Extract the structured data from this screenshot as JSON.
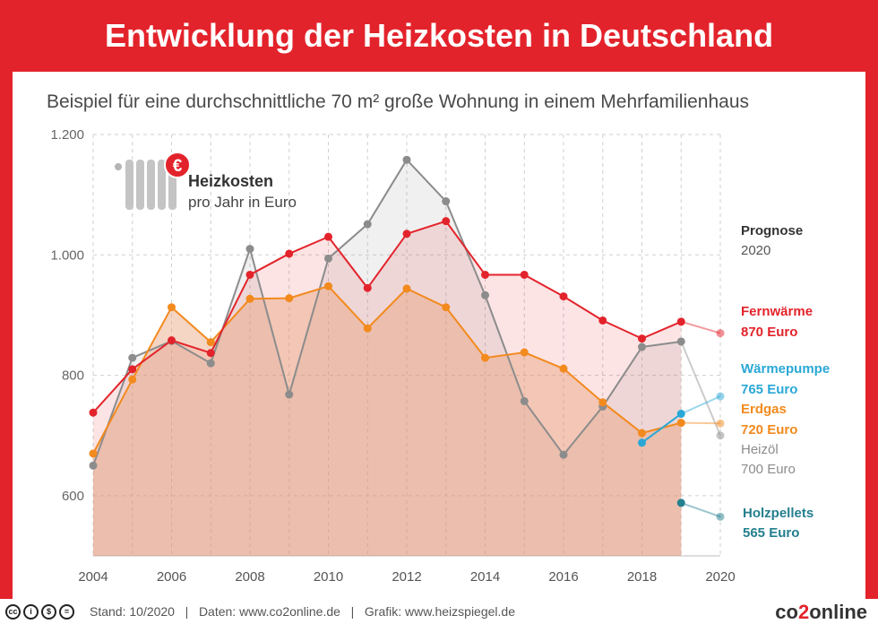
{
  "title": "Entwicklung der Heizkosten in Deutschland",
  "subtitle": "Beispiel für eine durchschnittliche 70 m² große Wohnung in einem Mehrfamilienhaus",
  "legend_box": {
    "title": "Heizkosten",
    "subtitle": "pro Jahr in Euro",
    "icon": "radiator-euro-icon"
  },
  "prognose": {
    "label": "Prognose",
    "year": "2020"
  },
  "colors": {
    "brand_red": "#e3232b",
    "fernwaerme": "#e3232b",
    "erdgas": "#f28a1e",
    "heizoel": "#8c8c8c",
    "waermepumpe": "#2aa8d6",
    "holzpellets": "#247f8e"
  },
  "footer": {
    "license_icons": [
      "cc-icon",
      "by-icon",
      "nc-icon",
      "nd-icon"
    ],
    "text": "Stand: 10/2020   |   Daten: www.co2online.de   |   Grafik: www.heizspiegel.de",
    "logo_a": "co",
    "logo_b": "2",
    "logo_c": "online"
  },
  "chart_data": {
    "type": "line",
    "title": "Entwicklung der Heizkosten in Deutschland",
    "subtitle": "Beispiel für eine durchschnittliche 70 m² große Wohnung in einem Mehrfamilienhaus",
    "xlabel": "",
    "ylabel": "",
    "x": [
      2004,
      2005,
      2006,
      2007,
      2008,
      2009,
      2010,
      2011,
      2012,
      2013,
      2014,
      2015,
      2016,
      2017,
      2018,
      2019
    ],
    "x_ticks": [
      "2004",
      "2006",
      "2008",
      "2010",
      "2012",
      "2014",
      "2016",
      "2018",
      "2020"
    ],
    "x_range": [
      2004,
      2020
    ],
    "y_ticks": [
      "600",
      "800",
      "1.000",
      "1.200"
    ],
    "ylim": [
      500,
      1200
    ],
    "grid": true,
    "series": [
      {
        "name": "Fernwärme",
        "values": [
          738,
          810,
          858,
          837,
          967,
          1002,
          1030,
          945,
          1035,
          1056,
          967,
          967,
          931,
          891,
          861,
          889
        ],
        "forecast_2020": 870,
        "label": "870 Euro"
      },
      {
        "name": "Erdgas",
        "values": [
          670,
          793,
          913,
          855,
          927,
          928,
          948,
          878,
          944,
          913,
          829,
          838,
          811,
          755,
          704,
          721
        ],
        "forecast_2020": 720,
        "label": "720 Euro"
      },
      {
        "name": "Heizöl",
        "values": [
          650,
          829,
          857,
          820,
          1010,
          768,
          994,
          1051,
          1158,
          1089,
          933,
          757,
          668,
          748,
          847,
          856
        ],
        "forecast_2020": 700,
        "label": "700 Euro"
      },
      {
        "name": "Wärmepumpe",
        "x": [
          2018,
          2019
        ],
        "values": [
          688,
          736
        ],
        "forecast_2020": 765,
        "label": "765 Euro"
      },
      {
        "name": "Holzpellets",
        "x": [
          2019
        ],
        "values": [
          588
        ],
        "forecast_2020": 565,
        "label": "565 Euro"
      }
    ]
  }
}
